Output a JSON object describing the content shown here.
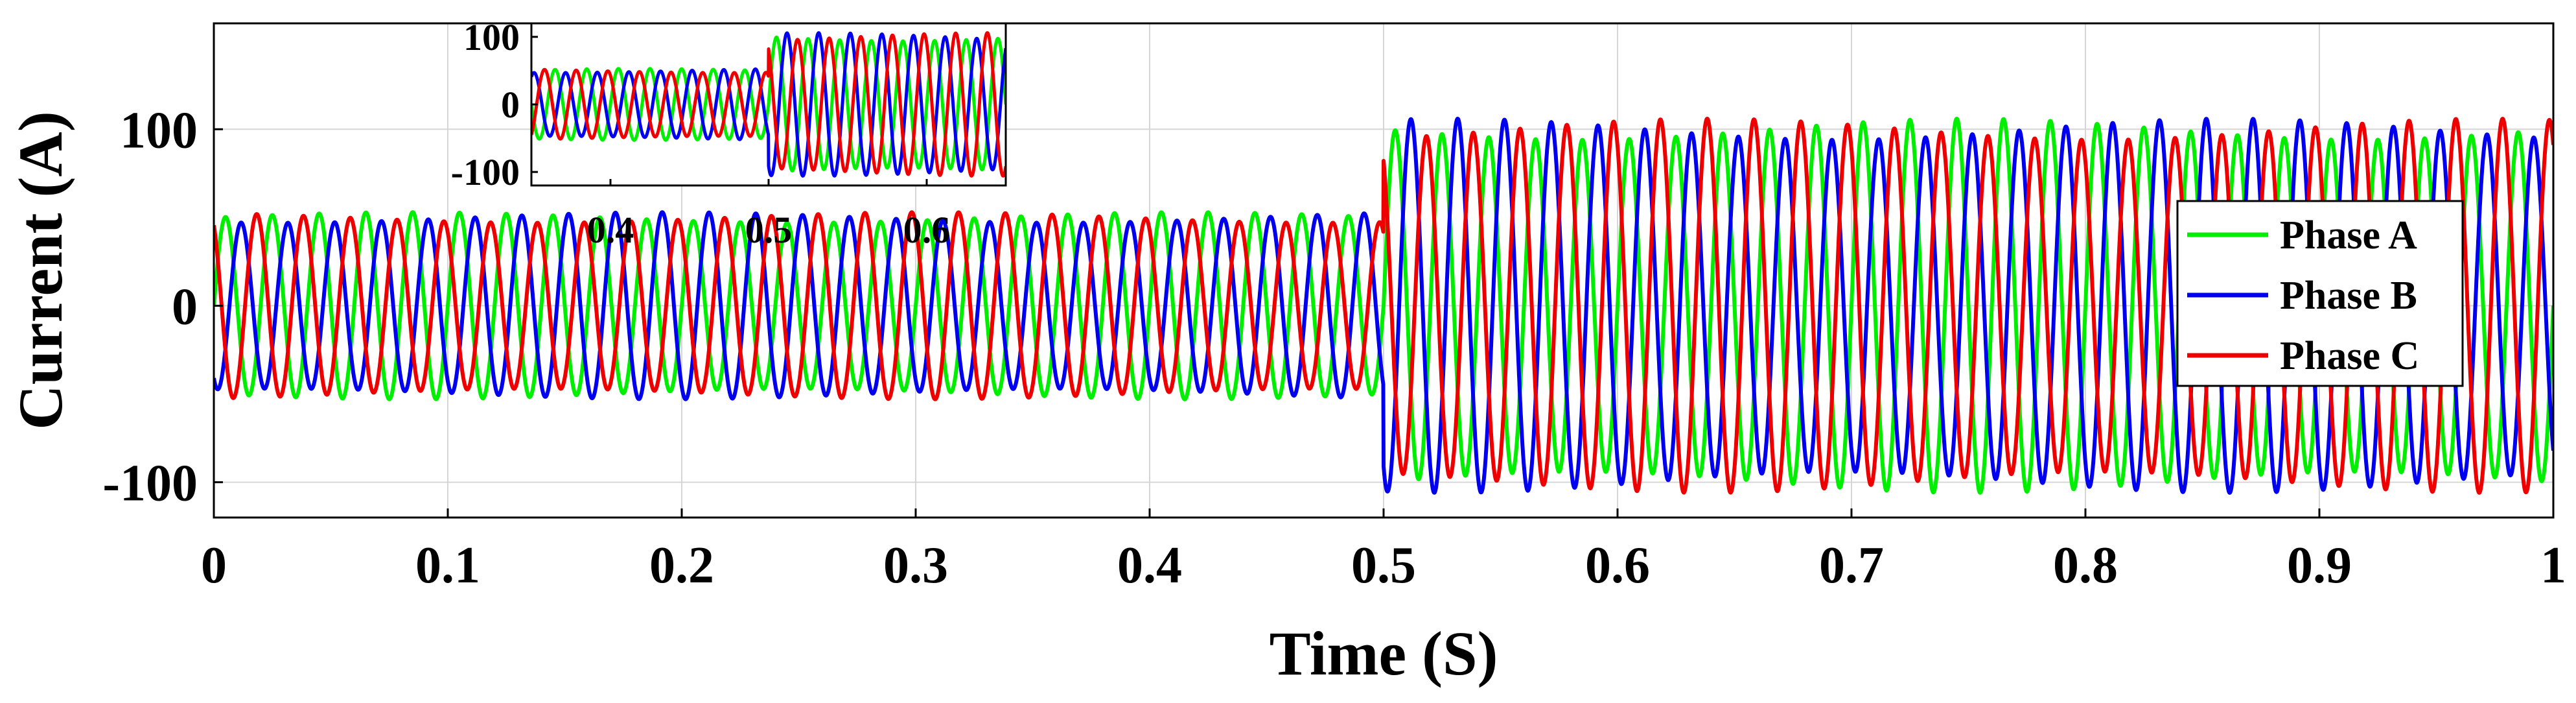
{
  "chart_data": {
    "type": "line",
    "xlabel": "Time (S)",
    "ylabel": "Current (A)",
    "xlim": [
      0,
      1
    ],
    "ylim": [
      -120,
      160
    ],
    "xticks": [
      0,
      0.1,
      0.2,
      0.3,
      0.4,
      0.5,
      0.6,
      0.7,
      0.8,
      0.9,
      1
    ],
    "xtick_labels": [
      "0",
      "0.1",
      "0.2",
      "0.3",
      "0.4",
      "0.5",
      "0.6",
      "0.7",
      "0.8",
      "0.9",
      "1"
    ],
    "yticks": [
      -100,
      0,
      100
    ],
    "ytick_labels": [
      "-100",
      "0",
      "100"
    ],
    "grid": true,
    "frequency_hz": 50,
    "step_time": 0.5,
    "legend_position": "right",
    "series": [
      {
        "name": "Phase A",
        "color": "#00ee00",
        "amplitude_before": 50,
        "amplitude_after": 100,
        "phase_deg": 0
      },
      {
        "name": "Phase B",
        "color": "#0000ee",
        "amplitude_before": 50,
        "amplitude_after": 100,
        "phase_deg": -120
      },
      {
        "name": "Phase C",
        "color": "#ee0000",
        "amplitude_before": 50,
        "amplitude_after": 100,
        "phase_deg": 120
      }
    ],
    "inset": {
      "xlim": [
        0.35,
        0.65
      ],
      "ylim": [
        -120,
        120
      ],
      "xticks": [
        0.4,
        0.5,
        0.6
      ],
      "xtick_labels": [
        "0.4",
        "0.5",
        "0.6"
      ],
      "yticks": [
        -100,
        0,
        100
      ],
      "ytick_labels": [
        "-100",
        "0",
        "100"
      ]
    }
  },
  "legend": {
    "phase_a": "Phase A",
    "phase_b": "Phase B",
    "phase_c": "Phase C"
  }
}
